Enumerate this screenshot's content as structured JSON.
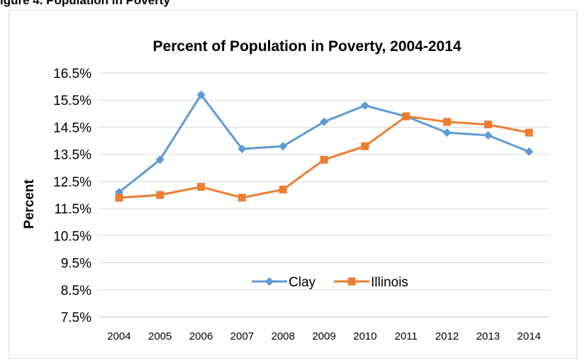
{
  "caption_fragment": "igure 4. Population in Poverty",
  "chart_data": {
    "type": "line",
    "title": "Percent of Population in Poverty, 2004-2014",
    "xlabel": "",
    "ylabel": "Percent",
    "categories": [
      "2004",
      "2005",
      "2006",
      "2007",
      "2008",
      "2009",
      "2010",
      "2011",
      "2012",
      "2013",
      "2014"
    ],
    "ylim": [
      7.5,
      16.5
    ],
    "yticks": [
      "7.5%",
      "8.5%",
      "9.5%",
      "10.5%",
      "11.5%",
      "12.5%",
      "13.5%",
      "14.5%",
      "15.5%",
      "16.5%"
    ],
    "grid": true,
    "legend_placement": "center-bottom",
    "series": [
      {
        "name": "Clay",
        "color": "#5b9bd5",
        "marker": "diamond",
        "values": [
          12.1,
          13.3,
          15.7,
          13.7,
          13.8,
          14.7,
          15.3,
          14.9,
          14.3,
          14.2,
          13.6
        ]
      },
      {
        "name": "Illinois",
        "color": "#ed7d31",
        "marker": "square",
        "values": [
          11.9,
          12.0,
          12.3,
          11.9,
          12.2,
          13.3,
          13.8,
          14.9,
          14.7,
          14.6,
          14.3
        ]
      }
    ]
  }
}
